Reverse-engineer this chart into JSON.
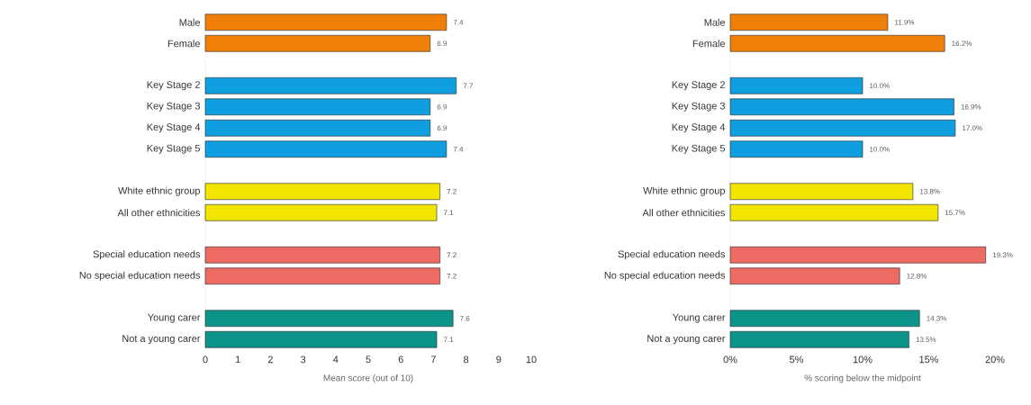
{
  "chart_data": [
    {
      "type": "bar",
      "orientation": "horizontal",
      "categories": [
        "Male",
        "Female",
        null,
        "Key Stage 2",
        "Key Stage 3",
        "Key Stage 4",
        "Key Stage 5",
        null,
        "White ethnic group",
        "All other ethnicities",
        null,
        "Special education needs",
        "No special education needs",
        null,
        "Young carer",
        "Not a young carer"
      ],
      "values": [
        7.4,
        6.9,
        null,
        7.7,
        6.9,
        6.9,
        7.4,
        null,
        7.2,
        7.1,
        null,
        7.2,
        7.2,
        null,
        7.6,
        7.1
      ],
      "colors": [
        "#f07f09",
        "#f07f09",
        null,
        "#0f9ee0",
        "#0f9ee0",
        "#0f9ee0",
        "#0f9ee0",
        null,
        "#f2e500",
        "#f2e500",
        null,
        "#ee6b63",
        "#ee6b63",
        null,
        "#0d948a",
        "#0d948a"
      ],
      "xlim": [
        0,
        10
      ],
      "xticks": [
        0,
        1,
        2,
        3,
        4,
        5,
        6,
        7,
        8,
        9,
        10
      ],
      "xlabel": "Mean score (out of 10)",
      "data_labels": true
    },
    {
      "type": "bar",
      "orientation": "horizontal",
      "categories": [
        "Male",
        "Female",
        null,
        "Key Stage 2",
        "Key Stage 3",
        "Key Stage 4",
        "Key Stage 5",
        null,
        "White ethnic group",
        "All other ethnicities",
        null,
        "Special education needs",
        "No special education needs",
        null,
        "Young carer",
        "Not a young carer"
      ],
      "values": [
        11.9,
        16.2,
        null,
        10.0,
        16.9,
        17.0,
        10.0,
        null,
        13.8,
        15.7,
        null,
        19.3,
        12.8,
        null,
        14.3,
        13.5
      ],
      "value_labels": [
        "11.9%",
        "16.2%",
        null,
        "10.0%",
        "16.9%",
        "17.0%",
        "10.0%",
        null,
        "13.8%",
        "15.7%",
        null,
        "19.3%",
        "12.8%",
        null,
        "14.3%",
        "13.5%"
      ],
      "colors": [
        "#f07f09",
        "#f07f09",
        null,
        "#0f9ee0",
        "#0f9ee0",
        "#0f9ee0",
        "#0f9ee0",
        null,
        "#f2e500",
        "#f2e500",
        null,
        "#ee6b63",
        "#ee6b63",
        null,
        "#0d948a",
        "#0d948a"
      ],
      "xlim": [
        0,
        20
      ],
      "xticks": [
        {
          "value": 0,
          "label": "0%"
        },
        {
          "value": 5,
          "label": "5%"
        },
        {
          "value": 10,
          "label": "10%"
        },
        {
          "value": 15,
          "label": "15%"
        },
        {
          "value": 20,
          "label": "20%"
        }
      ],
      "xlabel": "% scoring below the midpoint"
    }
  ]
}
